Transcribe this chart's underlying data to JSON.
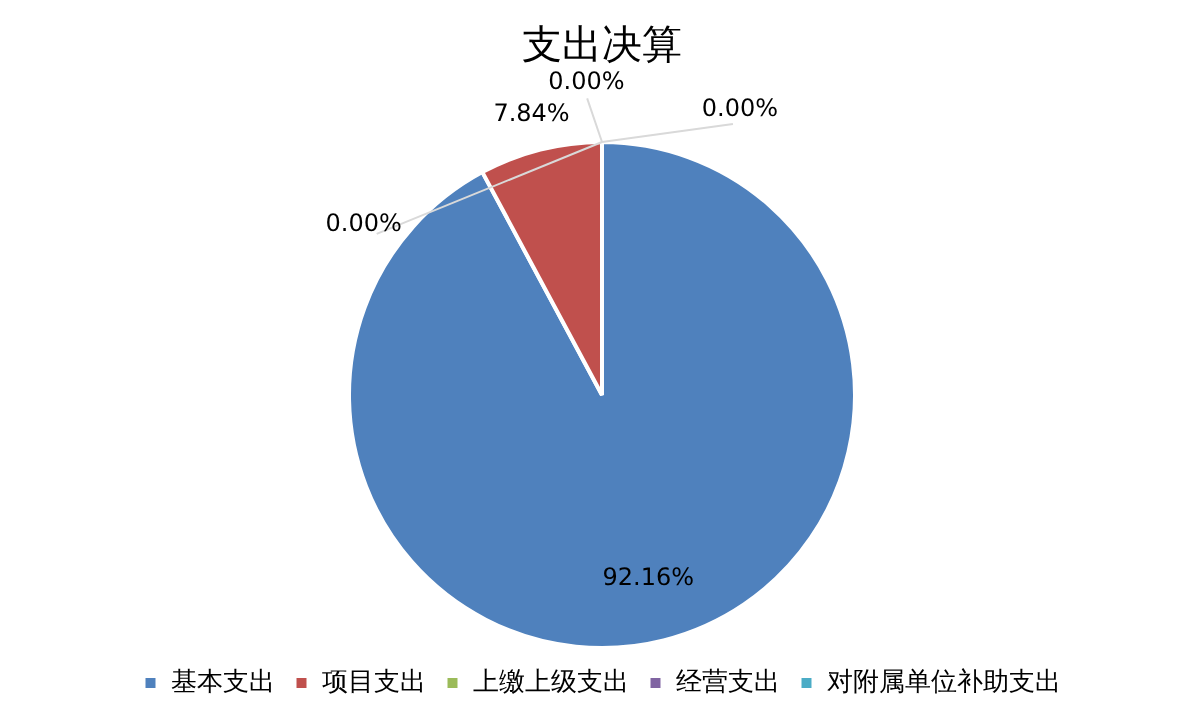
{
  "chart_data": {
    "type": "pie",
    "title": "支出决算",
    "categories": [
      "基本支出",
      "项目支出",
      "上缴上级支出",
      "经营支出",
      "对附属单位补助支出"
    ],
    "values": [
      92.16,
      7.84,
      0,
      0,
      0
    ],
    "value_labels": [
      "92.16%",
      "7.84%",
      "0.00%",
      "0.00%",
      "0.00%"
    ],
    "colors": [
      "#4f81bd",
      "#c0504d",
      "#9bbb59",
      "#8064a2",
      "#4bacc6"
    ],
    "legend": "bottom"
  }
}
